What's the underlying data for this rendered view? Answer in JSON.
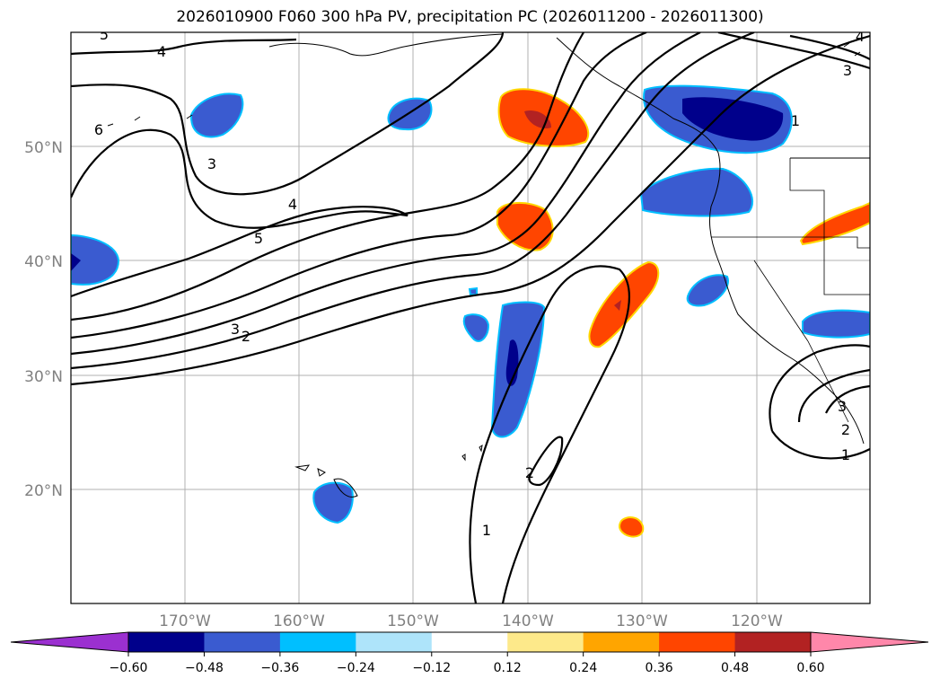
{
  "title": "2026010900 F060 300 hPa PV, precipitation PC (2026011200 - 2026011300)",
  "map": {
    "lon_labels": [
      "170°W",
      "160°W",
      "150°W",
      "140°W",
      "130°W",
      "120°W"
    ],
    "lat_labels": [
      "50°N",
      "40°N",
      "30°N",
      "20°N"
    ],
    "contour_labels": [
      "5",
      "4",
      "6",
      "3",
      "4",
      "5",
      "3",
      "2",
      "2",
      "1",
      "1",
      "3",
      "2",
      "1",
      "3",
      "4"
    ]
  },
  "colorbar": {
    "ticks": [
      "−0.60",
      "−0.48",
      "−0.36",
      "−0.24",
      "−0.12",
      "0.12",
      "0.24",
      "0.36",
      "0.48",
      "0.60"
    ],
    "colors": [
      "#9b30d0",
      "#00008b",
      "#3a5bd0",
      "#00bfff",
      "#aee4fa",
      "#ffffff",
      "#fde98a",
      "#ffa500",
      "#ff4500",
      "#b22222",
      "#ff87aa"
    ]
  }
}
